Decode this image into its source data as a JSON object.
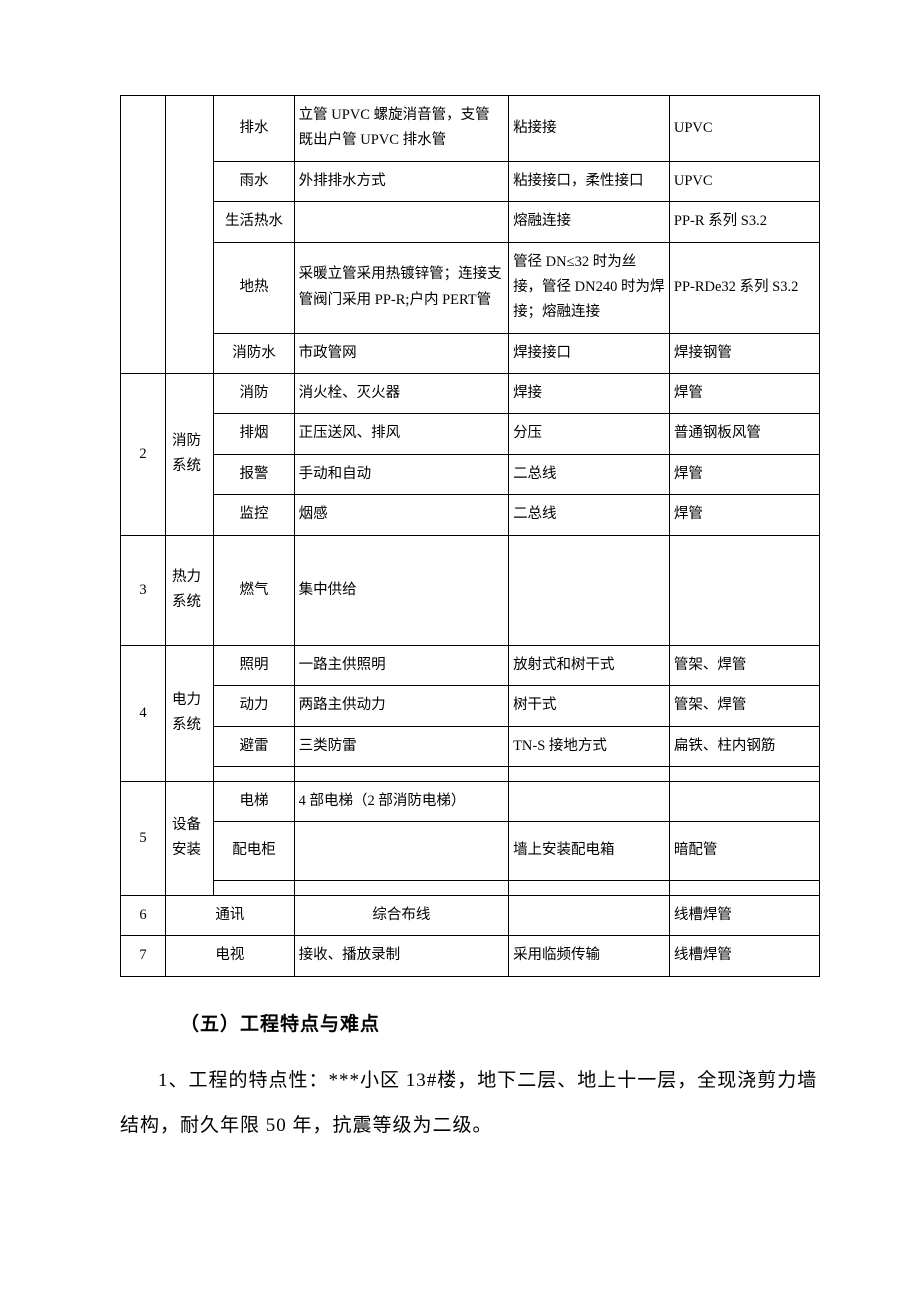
{
  "table": {
    "colors": {
      "border": "#000000",
      "background": "#ffffff",
      "text": "#000000"
    },
    "r1": {
      "sub": "排水",
      "desc": "立管 UPVC 螺旋消音管，支管既出户管 UPVC 排水管",
      "conn": "粘接接",
      "mat": "UPVC"
    },
    "r2": {
      "sub": "雨水",
      "desc": "外排排水方式",
      "conn": "粘接接口，柔性接口",
      "mat": "UPVC"
    },
    "r3": {
      "sub": "生活热水",
      "desc": "",
      "conn": "熔融连接",
      "mat": "PP-R 系列 S3.2"
    },
    "r4": {
      "sub": "地热",
      "desc": "采暖立管采用热镀锌管；连接支管阀门采用 PP-R;户内 PERT管",
      "conn": "管径 DN≤32 时为丝接，管径 DN240 时为焊接；熔融连接",
      "mat": "PP-RDe32 系列 S3.2"
    },
    "r5": {
      "sub": "消防水",
      "desc": "市政管网",
      "conn": "焊接接口",
      "mat": "焊接钢管"
    },
    "g2": {
      "num": "2",
      "sys": "消防系统",
      "rows": {
        "a": {
          "sub": "消防",
          "desc": "消火栓、灭火器",
          "conn": "焊接",
          "mat": "焊管"
        },
        "b": {
          "sub": "排烟",
          "desc": "正压送风、排风",
          "conn": "分压",
          "mat": "普通钢板风管"
        },
        "c": {
          "sub": "报警",
          "desc": "手动和自动",
          "conn": "二总线",
          "mat": "焊管"
        },
        "d": {
          "sub": "监控",
          "desc": "烟感",
          "conn": "二总线",
          "mat": "焊管"
        }
      }
    },
    "g3": {
      "num": "3",
      "sys": "热力系统",
      "sub": "燃气",
      "desc": "集中供给",
      "conn": "",
      "mat": ""
    },
    "g4": {
      "num": "4",
      "sys": "电力系统",
      "rows": {
        "a": {
          "sub": "照明",
          "desc": "一路主供照明",
          "conn": "放射式和树干式",
          "mat": "管架、焊管"
        },
        "b": {
          "sub": "动力",
          "desc": "两路主供动力",
          "conn": "树干式",
          "mat": "管架、焊管"
        },
        "c": {
          "sub": "避雷",
          "desc": "三类防雷",
          "conn": "TN-S 接地方式",
          "mat": "扁铁、柱内钢筋"
        }
      },
      "blank": {
        "sub": "",
        "desc": "",
        "conn": "",
        "mat": ""
      }
    },
    "g5": {
      "num": "5",
      "sys": "设备安装",
      "rows": {
        "a": {
          "sub": "电梯",
          "desc": "4 部电梯（2 部消防电梯）",
          "conn": "",
          "mat": ""
        },
        "b": {
          "sub": "配电柜",
          "desc": "",
          "conn": "墙上安装配电箱",
          "mat": "暗配管"
        }
      },
      "blank": {
        "sub": "",
        "desc": "",
        "conn": "",
        "mat": ""
      }
    },
    "g6": {
      "num": "6",
      "sub": "通讯",
      "desc": "综合布线",
      "conn": "",
      "mat": "线槽焊管"
    },
    "g7": {
      "num": "7",
      "sub": "电视",
      "desc": "接收、播放录制",
      "conn": "采用临频传输",
      "mat": "线槽焊管"
    }
  },
  "heading": "（五）工程特点与难点",
  "paragraph": "1、工程的特点性：***小区 13#楼，地下二层、地上十一层，全现浇剪力墙结构，耐久年限 50 年，抗震等级为二级。"
}
